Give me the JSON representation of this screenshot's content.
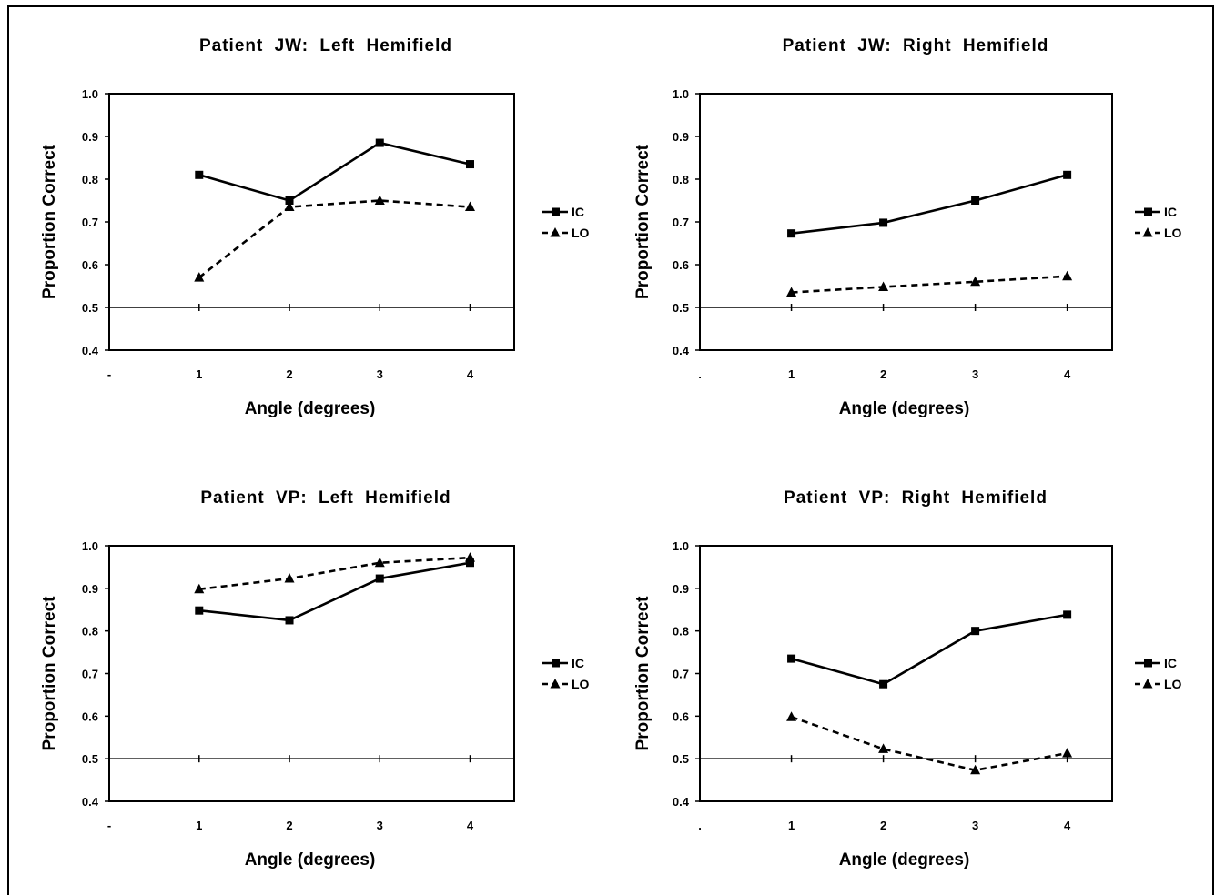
{
  "chart_data": [
    {
      "type": "line",
      "title": "Patient JW: Left Hemifield",
      "xlabel": "Angle (degrees)",
      "ylabel": "Proportion Correct",
      "categories": [
        "1",
        "2",
        "3",
        "4"
      ],
      "x_extra_tick": "-",
      "ylim": [
        0.4,
        1.0
      ],
      "yticks": [
        "1.0",
        "0.9",
        "0.8",
        "0.7",
        "0.6",
        "0.5",
        "0.4"
      ],
      "reference_line": 0.5,
      "legend_position": "right",
      "series": [
        {
          "name": "IC",
          "marker": "square",
          "dash": false,
          "values": [
            0.81,
            0.75,
            0.885,
            0.835
          ]
        },
        {
          "name": "LO",
          "marker": "triangle",
          "dash": true,
          "values": [
            0.57,
            0.735,
            0.75,
            0.735
          ]
        }
      ]
    },
    {
      "type": "line",
      "title": "Patient JW: Right Hemifield",
      "xlabel": "Angle (degrees)",
      "ylabel": "Proportion Correct",
      "categories": [
        "1",
        "2",
        "3",
        "4"
      ],
      "x_extra_tick": ".",
      "ylim": [
        0.4,
        1.0
      ],
      "yticks": [
        "1.0",
        "0.9",
        "0.8",
        "0.7",
        "0.6",
        "0.5",
        "0.4"
      ],
      "reference_line": 0.5,
      "legend_position": "right",
      "series": [
        {
          "name": "IC",
          "marker": "square",
          "dash": false,
          "values": [
            0.673,
            0.698,
            0.75,
            0.81
          ]
        },
        {
          "name": "LO",
          "marker": "triangle",
          "dash": true,
          "values": [
            0.535,
            0.548,
            0.56,
            0.573
          ]
        }
      ]
    },
    {
      "type": "line",
      "title": "Patient VP: Left Hemifield",
      "xlabel": "Angle (degrees)",
      "ylabel": "Proportion Correct",
      "categories": [
        "1",
        "2",
        "3",
        "4"
      ],
      "x_extra_tick": "-",
      "ylim": [
        0.4,
        1.0
      ],
      "yticks": [
        "1.0",
        "0.9",
        "0.8",
        "0.7",
        "0.6",
        "0.5",
        "0.4"
      ],
      "reference_line": 0.5,
      "legend_position": "right",
      "series": [
        {
          "name": "IC",
          "marker": "square",
          "dash": false,
          "values": [
            0.848,
            0.825,
            0.923,
            0.96
          ]
        },
        {
          "name": "LO",
          "marker": "triangle",
          "dash": true,
          "values": [
            0.898,
            0.923,
            0.96,
            0.972
          ]
        }
      ]
    },
    {
      "type": "line",
      "title": "Patient VP: Right Hemifield",
      "xlabel": "Angle (degrees)",
      "ylabel": "Proportion Correct",
      "categories": [
        "1",
        "2",
        "3",
        "4"
      ],
      "x_extra_tick": ".",
      "ylim": [
        0.4,
        1.0
      ],
      "yticks": [
        "1.0",
        "0.9",
        "0.8",
        "0.7",
        "0.6",
        "0.5",
        "0.4"
      ],
      "reference_line": 0.5,
      "legend_position": "right",
      "series": [
        {
          "name": "IC",
          "marker": "square",
          "dash": false,
          "values": [
            0.735,
            0.675,
            0.8,
            0.838
          ]
        },
        {
          "name": "LO",
          "marker": "triangle",
          "dash": true,
          "values": [
            0.598,
            0.523,
            0.473,
            0.513
          ]
        }
      ]
    }
  ]
}
